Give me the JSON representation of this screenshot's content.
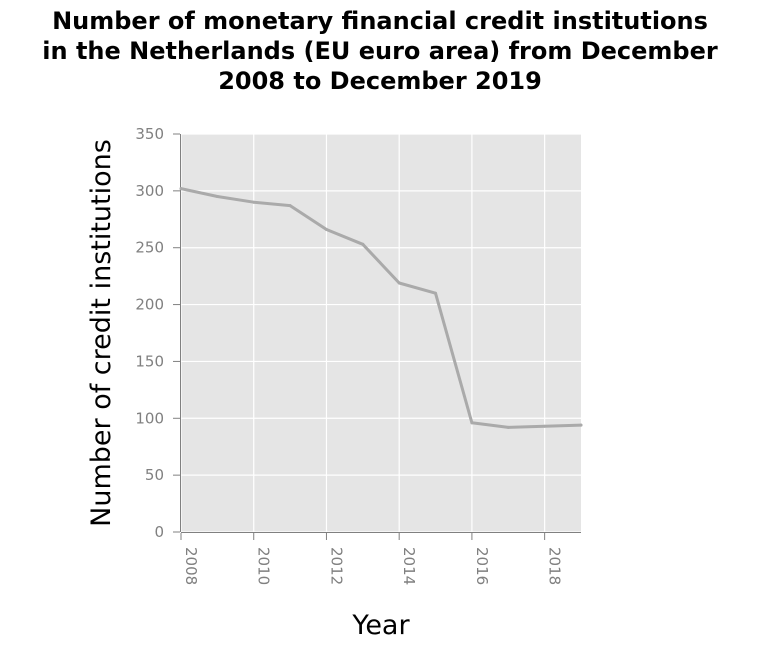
{
  "chart_data": {
    "type": "line",
    "title_lines": [
      "Number of monetary financial credit institutions",
      "in the Netherlands (EU euro area) from December",
      "2008 to December 2019"
    ],
    "xlabel": "Year",
    "ylabel": "Number of credit institutions",
    "xlim": [
      2008,
      2019
    ],
    "ylim": [
      0,
      350
    ],
    "xticks": [
      2008,
      2010,
      2012,
      2014,
      2016,
      2018
    ],
    "yticks": [
      0,
      50,
      100,
      150,
      200,
      250,
      300,
      350
    ],
    "grid": true,
    "x": [
      2008,
      2009,
      2010,
      2011,
      2012,
      2013,
      2014,
      2015,
      2016,
      2017,
      2018,
      2019
    ],
    "y": [
      302,
      295,
      290,
      287,
      266,
      253,
      219,
      210,
      96,
      92,
      93,
      94
    ],
    "colors": {
      "plot_background": "#e5e5e5",
      "grid": "#ffffff",
      "line": "#aaaaaa",
      "tick_label": "#808080"
    }
  }
}
